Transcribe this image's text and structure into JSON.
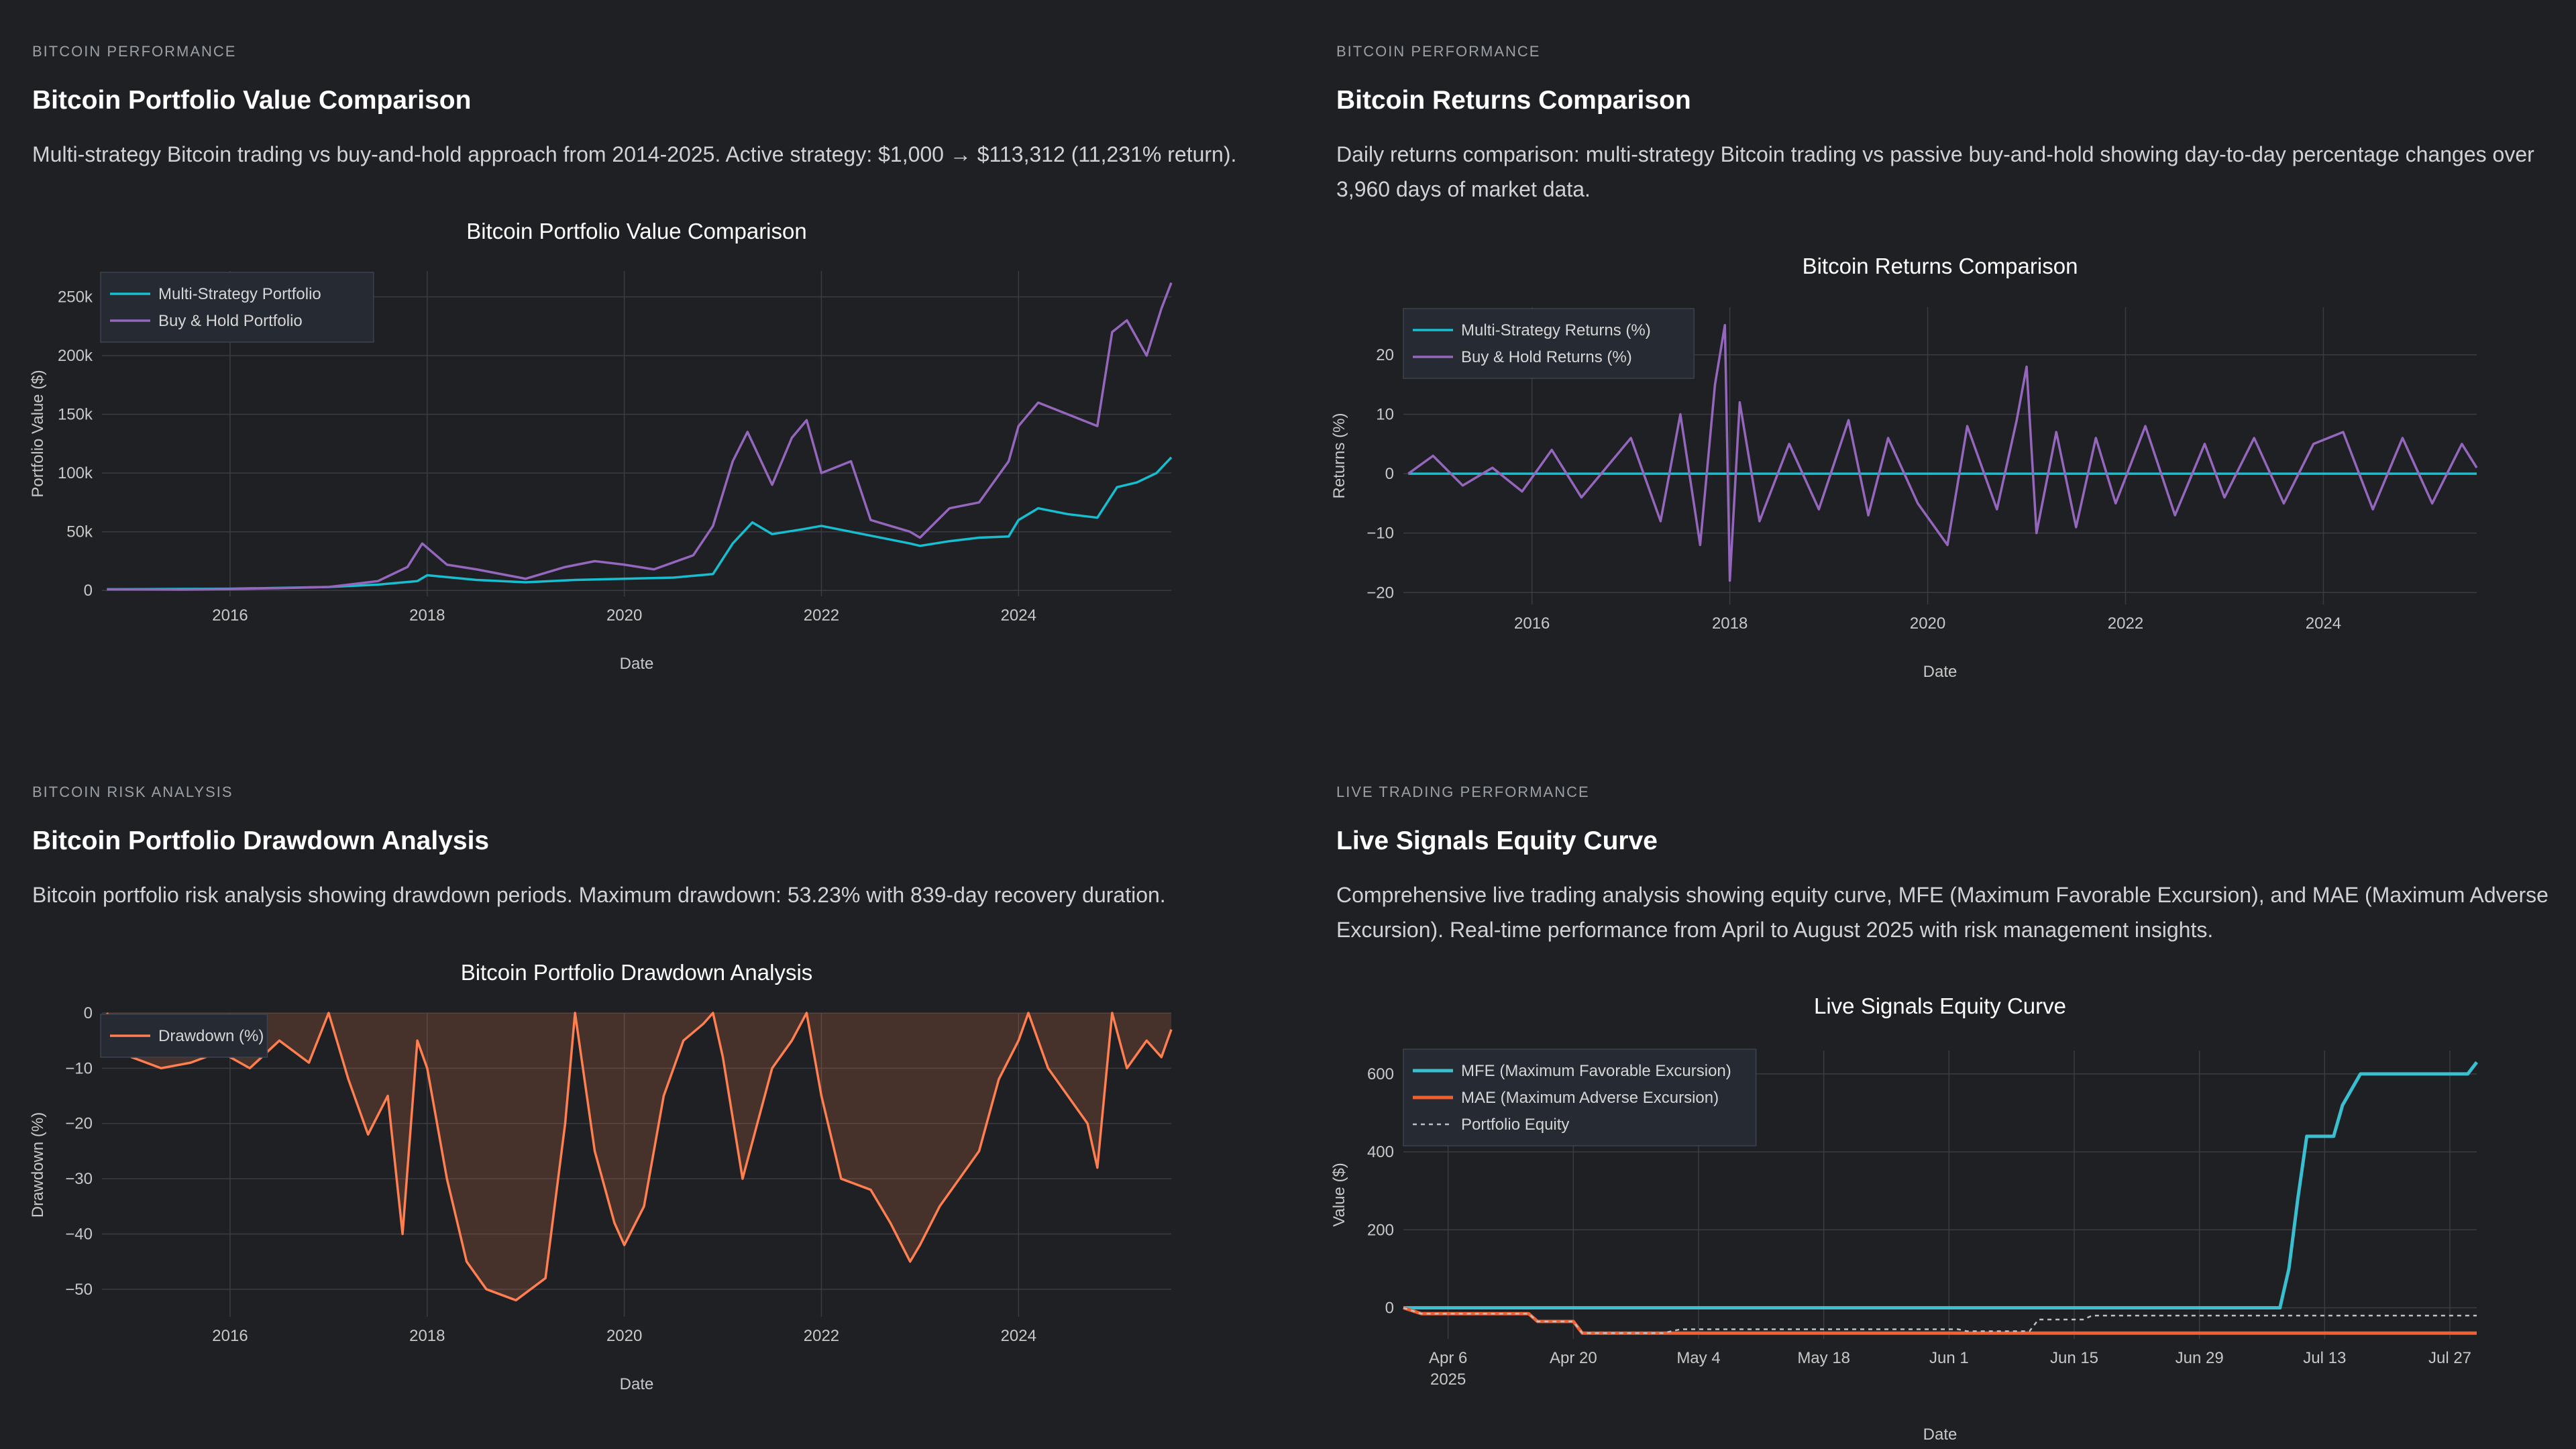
{
  "panels": [
    {
      "kicker": "BITCOIN PERFORMANCE",
      "title": "Bitcoin Portfolio Value Comparison",
      "desc": "Multi-strategy Bitcoin trading vs buy-and-hold approach from 2014-2025. Active strategy: $1,000 → $113,312 (11,231% return)."
    },
    {
      "kicker": "BITCOIN PERFORMANCE",
      "title": "Bitcoin Returns Comparison",
      "desc": "Daily returns comparison: multi-strategy Bitcoin trading vs passive buy-and-hold showing day-to-day percentage changes over 3,960 days of market data."
    },
    {
      "kicker": "BITCOIN RISK ANALYSIS",
      "title": "Bitcoin Portfolio Drawdown Analysis",
      "desc": "Bitcoin portfolio risk analysis showing drawdown periods. Maximum drawdown: 53.23% with 839-day recovery duration."
    },
    {
      "kicker": "LIVE TRADING PERFORMANCE",
      "title": "Live Signals Equity Curve",
      "desc": "Comprehensive live trading analysis showing equity curve, MFE (Maximum Favorable Excursion), and MAE (Maximum Adverse Excursion). Real-time performance from April to August 2025 with risk management insights."
    }
  ],
  "chart_data": [
    {
      "type": "line",
      "title": "Bitcoin Portfolio Value Comparison",
      "xlabel": "Date",
      "ylabel": "Portfolio Value ($)",
      "xlim": [
        2014.7,
        2025.55
      ],
      "ylim": [
        -5000,
        272000
      ],
      "xticks": [
        2016,
        2018,
        2020,
        2022,
        2024
      ],
      "xticklabels": [
        "2016",
        "2018",
        "2020",
        "2022",
        "2024"
      ],
      "yticks": [
        0,
        50000,
        100000,
        150000,
        200000,
        250000
      ],
      "yticklabels": [
        "0",
        "50k",
        "100k",
        "150k",
        "200k",
        "250k"
      ],
      "legend_position": "top-left",
      "grid": true,
      "series": [
        {
          "name": "Multi-Strategy Portfolio",
          "color": "#17becf",
          "x": [
            2014.75,
            2016.0,
            2017.0,
            2017.5,
            2017.9,
            2018.0,
            2018.5,
            2019.0,
            2019.5,
            2020.0,
            2020.5,
            2020.9,
            2021.1,
            2021.3,
            2021.5,
            2021.8,
            2022.0,
            2022.3,
            2022.6,
            2022.9,
            2023.0,
            2023.3,
            2023.6,
            2023.9,
            2024.0,
            2024.2,
            2024.5,
            2024.8,
            2025.0,
            2025.2,
            2025.4,
            2025.55
          ],
          "y": [
            1000,
            1500,
            3000,
            5000,
            8000,
            13000,
            9000,
            7000,
            9000,
            10000,
            11000,
            14000,
            40000,
            58000,
            48000,
            52000,
            55000,
            50000,
            45000,
            40000,
            38000,
            42000,
            45000,
            46000,
            60000,
            70000,
            65000,
            62000,
            88000,
            92000,
            100000,
            113312
          ]
        },
        {
          "name": "Buy & Hold Portfolio",
          "color": "#9467bd",
          "x": [
            2014.75,
            2015.5,
            2016.0,
            2016.5,
            2017.0,
            2017.5,
            2017.8,
            2017.95,
            2018.2,
            2018.5,
            2019.0,
            2019.4,
            2019.7,
            2020.0,
            2020.3,
            2020.7,
            2020.9,
            2021.1,
            2021.25,
            2021.5,
            2021.7,
            2021.85,
            2022.0,
            2022.3,
            2022.5,
            2022.9,
            2023.0,
            2023.3,
            2023.6,
            2023.9,
            2024.0,
            2024.2,
            2024.5,
            2024.8,
            2024.95,
            2025.1,
            2025.3,
            2025.45,
            2025.55
          ],
          "y": [
            1000,
            800,
            1200,
            2000,
            3000,
            8000,
            20000,
            40000,
            22000,
            18000,
            10000,
            20000,
            25000,
            22000,
            18000,
            30000,
            55000,
            110000,
            135000,
            90000,
            130000,
            145000,
            100000,
            110000,
            60000,
            50000,
            45000,
            70000,
            75000,
            110000,
            140000,
            160000,
            150000,
            140000,
            220000,
            230000,
            200000,
            240000,
            262000
          ]
        }
      ]
    },
    {
      "type": "line",
      "title": "Bitcoin Returns Comparison",
      "xlabel": "Date",
      "ylabel": "Returns (%)",
      "xlim": [
        2014.7,
        2025.55
      ],
      "ylim": [
        -22,
        28
      ],
      "xticks": [
        2016,
        2018,
        2020,
        2022,
        2024
      ],
      "xticklabels": [
        "2016",
        "2018",
        "2020",
        "2022",
        "2024"
      ],
      "yticks": [
        -20,
        -10,
        0,
        10,
        20
      ],
      "yticklabels": [
        "−20",
        "−10",
        "0",
        "10",
        "20"
      ],
      "legend_position": "top-left",
      "grid": true,
      "series": [
        {
          "name": "Multi-Strategy Returns (%)",
          "color": "#17becf",
          "x": [
            2014.75,
            2025.55
          ],
          "y": [
            0,
            0
          ]
        },
        {
          "name": "Buy & Hold Returns (%)",
          "color": "#9467bd",
          "x": [
            2014.75,
            2015.0,
            2015.3,
            2015.6,
            2015.9,
            2016.2,
            2016.5,
            2016.8,
            2017.0,
            2017.3,
            2017.5,
            2017.7,
            2017.85,
            2017.95,
            2018.0,
            2018.1,
            2018.3,
            2018.6,
            2018.9,
            2019.2,
            2019.4,
            2019.6,
            2019.9,
            2020.2,
            2020.4,
            2020.7,
            2020.9,
            2021.0,
            2021.1,
            2021.3,
            2021.5,
            2021.7,
            2021.9,
            2022.2,
            2022.5,
            2022.8,
            2023.0,
            2023.3,
            2023.6,
            2023.9,
            2024.2,
            2024.5,
            2024.8,
            2025.1,
            2025.4,
            2025.55
          ],
          "y": [
            0,
            3,
            -2,
            1,
            -3,
            4,
            -4,
            2,
            6,
            -8,
            10,
            -12,
            15,
            25,
            -18,
            12,
            -8,
            5,
            -6,
            9,
            -7,
            6,
            -5,
            -12,
            8,
            -6,
            9,
            18,
            -10,
            7,
            -9,
            6,
            -5,
            8,
            -7,
            5,
            -4,
            6,
            -5,
            5,
            7,
            -6,
            6,
            -5,
            5,
            1
          ]
        }
      ]
    },
    {
      "type": "area",
      "title": "Bitcoin Portfolio Drawdown Analysis",
      "xlabel": "Date",
      "ylabel": "Drawdown (%)",
      "xlim": [
        2014.7,
        2025.55
      ],
      "ylim": [
        -55,
        0
      ],
      "xticks": [
        2016,
        2018,
        2020,
        2022,
        2024
      ],
      "xticklabels": [
        "2016",
        "2018",
        "2020",
        "2022",
        "2024"
      ],
      "yticks": [
        0,
        -10,
        -20,
        -30,
        -40,
        -50
      ],
      "yticklabels": [
        "0",
        "−10",
        "−20",
        "−30",
        "−40",
        "−50"
      ],
      "legend_position": "top-left",
      "grid": true,
      "series": [
        {
          "name": "Drawdown (%)",
          "color": "#ff7f50",
          "x": [
            2014.75,
            2015.0,
            2015.3,
            2015.6,
            2015.9,
            2016.2,
            2016.5,
            2016.8,
            2017.0,
            2017.2,
            2017.4,
            2017.6,
            2017.75,
            2017.9,
            2018.0,
            2018.2,
            2018.4,
            2018.6,
            2018.9,
            2019.2,
            2019.4,
            2019.5,
            2019.7,
            2019.9,
            2020.0,
            2020.2,
            2020.4,
            2020.6,
            2020.8,
            2020.9,
            2021.0,
            2021.2,
            2021.35,
            2021.5,
            2021.7,
            2021.85,
            2022.0,
            2022.2,
            2022.5,
            2022.7,
            2022.9,
            2023.0,
            2023.2,
            2023.4,
            2023.6,
            2023.8,
            2024.0,
            2024.1,
            2024.3,
            2024.5,
            2024.7,
            2024.8,
            2024.95,
            2025.1,
            2025.3,
            2025.45,
            2025.55
          ],
          "y": [
            0,
            -8,
            -10,
            -9,
            -7,
            -10,
            -5,
            -9,
            0,
            -12,
            -22,
            -15,
            -40,
            -5,
            -10,
            -30,
            -45,
            -50,
            -52,
            -48,
            -20,
            0,
            -25,
            -38,
            -42,
            -35,
            -15,
            -5,
            -2,
            0,
            -8,
            -30,
            -20,
            -10,
            -5,
            0,
            -15,
            -30,
            -32,
            -38,
            -45,
            -42,
            -35,
            -30,
            -25,
            -12,
            -5,
            0,
            -10,
            -15,
            -20,
            -28,
            0,
            -10,
            -5,
            -8,
            -3
          ]
        }
      ]
    },
    {
      "type": "line",
      "title": "Live Signals Equity Curve",
      "xlabel": "Date",
      "ylabel": "Value ($)",
      "xlim": [
        0,
        120
      ],
      "ylim": [
        -80,
        660
      ],
      "xticks": [
        5,
        19,
        33,
        47,
        61,
        75,
        89,
        103,
        117
      ],
      "xticklabels": [
        "Apr 6\n2025",
        "Apr 20",
        "May 4",
        "May 18",
        "Jun 1",
        "Jun 15",
        "Jun 29",
        "Jul 13",
        "Jul 27"
      ],
      "yticks": [
        0,
        200,
        400,
        600
      ],
      "yticklabels": [
        "0",
        "200",
        "400",
        "600"
      ],
      "legend_position": "top-left",
      "grid": true,
      "series": [
        {
          "name": "MFE (Maximum Favorable Excursion)",
          "color": "#39bfcf",
          "dash": "solid",
          "x": [
            0,
            1,
            98,
            99,
            100,
            101,
            103,
            104,
            105,
            107,
            119,
            120
          ],
          "y": [
            0,
            0,
            0,
            100,
            280,
            440,
            440,
            440,
            520,
            600,
            600,
            630
          ]
        },
        {
          "name": "MAE (Maximum Adverse Excursion)",
          "color": "#f06030",
          "dash": "solid",
          "x": [
            0,
            2,
            14,
            15,
            19,
            20,
            120
          ],
          "y": [
            0,
            -15,
            -15,
            -35,
            -35,
            -65,
            -65
          ]
        },
        {
          "name": "Portfolio Equity",
          "color": "#b9c2c8",
          "dash": "dotted",
          "x": [
            0,
            2,
            14,
            15,
            19,
            20,
            29,
            30,
            31,
            62,
            63,
            70,
            71,
            76,
            77,
            120
          ],
          "y": [
            0,
            -15,
            -15,
            -35,
            -35,
            -65,
            -65,
            -60,
            -55,
            -55,
            -60,
            -60,
            -30,
            -30,
            -20,
            -20
          ]
        }
      ]
    }
  ]
}
